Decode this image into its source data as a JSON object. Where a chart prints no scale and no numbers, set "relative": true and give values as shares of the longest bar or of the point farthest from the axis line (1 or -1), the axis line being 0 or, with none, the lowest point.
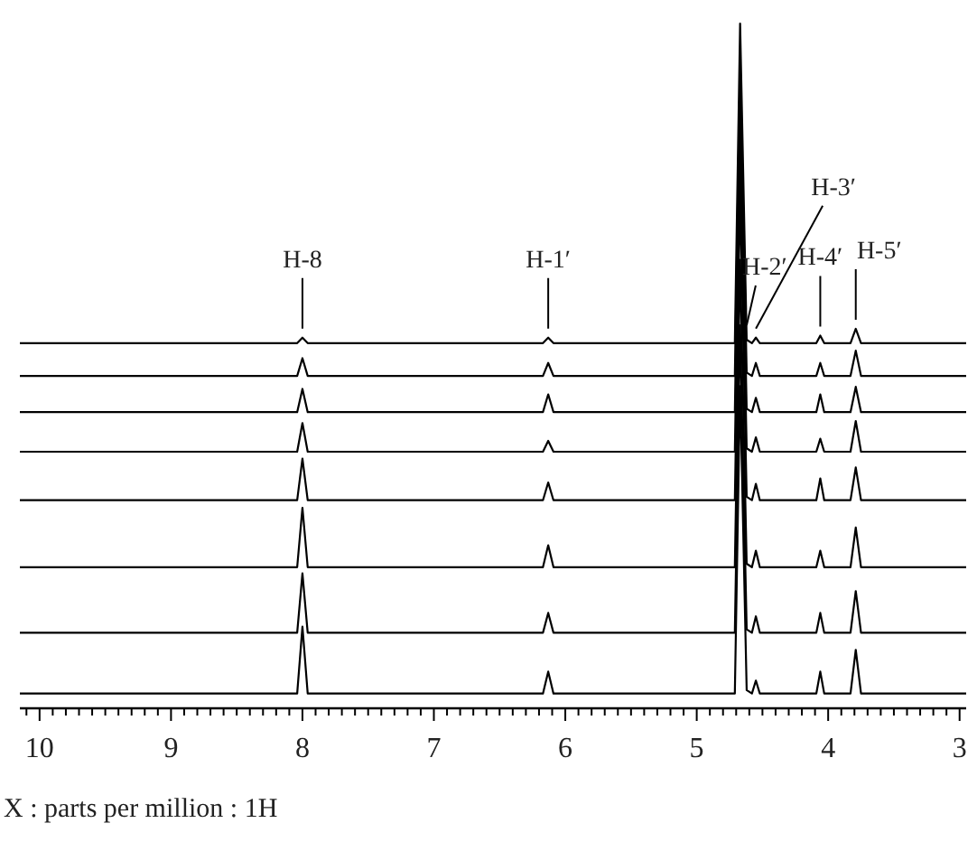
{
  "chart_data": {
    "type": "line",
    "relative": true,
    "xlabel": "X : parts per million : 1H",
    "xlim": [
      10.15,
      2.95
    ],
    "xticks": [
      {
        "value": 10.1,
        "label": null
      },
      10,
      {
        "value": 9.9,
        "label": null
      },
      {
        "value": 9.8,
        "label": null
      },
      {
        "value": 9.7,
        "label": null
      },
      {
        "value": 9.6,
        "label": null
      },
      {
        "value": 9.5,
        "label": null
      },
      {
        "value": 9.4,
        "label": null
      },
      {
        "value": 9.3,
        "label": null
      },
      {
        "value": 9.2,
        "label": null
      },
      {
        "value": 9.1,
        "label": null
      },
      9,
      {
        "value": 8.9,
        "label": null
      },
      {
        "value": 8.8,
        "label": null
      },
      {
        "value": 8.7,
        "label": null
      },
      {
        "value": 8.6,
        "label": null
      },
      {
        "value": 8.5,
        "label": null
      },
      {
        "value": 8.4,
        "label": null
      },
      {
        "value": 8.3,
        "label": null
      },
      {
        "value": 8.2,
        "label": null
      },
      {
        "value": 8.1,
        "label": null
      },
      8,
      {
        "value": 7.9,
        "label": null
      },
      {
        "value": 7.8,
        "label": null
      },
      {
        "value": 7.7,
        "label": null
      },
      {
        "value": 7.6,
        "label": null
      },
      {
        "value": 7.5,
        "label": null
      },
      {
        "value": 7.4,
        "label": null
      },
      {
        "value": 7.3,
        "label": null
      },
      {
        "value": 7.2,
        "label": null
      },
      {
        "value": 7.1,
        "label": null
      },
      7,
      {
        "value": 6.9,
        "label": null
      },
      {
        "value": 6.8,
        "label": null
      },
      {
        "value": 6.7,
        "label": null
      },
      {
        "value": 6.6,
        "label": null
      },
      {
        "value": 6.5,
        "label": null
      },
      {
        "value": 6.4,
        "label": null
      },
      {
        "value": 6.3,
        "label": null
      },
      {
        "value": 6.2,
        "label": null
      },
      {
        "value": 6.1,
        "label": null
      },
      6,
      {
        "value": 5.9,
        "label": null
      },
      {
        "value": 5.8,
        "label": null
      },
      {
        "value": 5.7,
        "label": null
      },
      {
        "value": 5.6,
        "label": null
      },
      {
        "value": 5.5,
        "label": null
      },
      {
        "value": 5.4,
        "label": null
      },
      {
        "value": 5.3,
        "label": null
      },
      {
        "value": 5.2,
        "label": null
      },
      {
        "value": 5.1,
        "label": null
      },
      5,
      {
        "value": 4.9,
        "label": null
      },
      {
        "value": 4.8,
        "label": null
      },
      {
        "value": 4.7,
        "label": null
      },
      {
        "value": 4.6,
        "label": null
      },
      {
        "value": 4.5,
        "label": null
      },
      {
        "value": 4.4,
        "label": null
      },
      {
        "value": 4.3,
        "label": null
      },
      {
        "value": 4.2,
        "label": null
      },
      {
        "value": 4.1,
        "label": null
      },
      4,
      {
        "value": 3.9,
        "label": null
      },
      {
        "value": 3.8,
        "label": null
      },
      {
        "value": 3.7,
        "label": null
      },
      {
        "value": 3.6,
        "label": null
      },
      {
        "value": 3.5,
        "label": null
      },
      {
        "value": 3.4,
        "label": null
      },
      {
        "value": 3.3,
        "label": null
      },
      {
        "value": 3.2,
        "label": null
      },
      {
        "value": 3.1,
        "label": null
      },
      3
    ],
    "x": [
      10.15,
      8.04,
      8.0,
      7.96,
      6.17,
      6.13,
      6.09,
      4.71,
      4.67,
      4.62,
      4.58,
      4.55,
      4.52,
      4.09,
      4.06,
      4.03,
      3.83,
      3.79,
      3.75,
      2.95
    ],
    "series": [
      {
        "color": "#000000",
        "values": [
          0.532,
          0.532,
          0.54,
          0.532,
          0.532,
          0.54,
          0.532,
          0.532,
          1.0,
          0.537,
          0.532,
          0.54,
          0.532,
          0.532,
          0.543,
          0.532,
          0.532,
          0.553,
          0.532,
          0.532
        ]
      },
      {
        "color": "#000000",
        "values": [
          0.484,
          0.484,
          0.51,
          0.484,
          0.484,
          0.503,
          0.484,
          0.484,
          0.934,
          0.489,
          0.484,
          0.503,
          0.484,
          0.484,
          0.503,
          0.484,
          0.484,
          0.521,
          0.484,
          0.484
        ]
      },
      {
        "color": "#000000",
        "values": [
          0.431,
          0.431,
          0.465,
          0.431,
          0.431,
          0.457,
          0.431,
          0.431,
          0.881,
          0.436,
          0.431,
          0.452,
          0.431,
          0.431,
          0.457,
          0.431,
          0.431,
          0.468,
          0.431,
          0.431
        ]
      },
      {
        "color": "#000000",
        "values": [
          0.373,
          0.373,
          0.415,
          0.373,
          0.373,
          0.389,
          0.373,
          0.373,
          0.823,
          0.378,
          0.373,
          0.394,
          0.373,
          0.373,
          0.392,
          0.373,
          0.373,
          0.418,
          0.373,
          0.373
        ]
      },
      {
        "color": "#000000",
        "values": [
          0.302,
          0.302,
          0.363,
          0.302,
          0.302,
          0.328,
          0.302,
          0.302,
          0.752,
          0.307,
          0.302,
          0.326,
          0.302,
          0.302,
          0.334,
          0.302,
          0.302,
          0.35,
          0.302,
          0.302
        ]
      },
      {
        "color": "#000000",
        "values": [
          0.204,
          0.204,
          0.291,
          0.204,
          0.204,
          0.236,
          0.204,
          0.204,
          0.654,
          0.209,
          0.204,
          0.228,
          0.204,
          0.204,
          0.228,
          0.204,
          0.204,
          0.262,
          0.204,
          0.204
        ]
      },
      {
        "color": "#000000",
        "values": [
          0.108,
          0.108,
          0.195,
          0.108,
          0.108,
          0.137,
          0.108,
          0.108,
          0.558,
          0.113,
          0.108,
          0.132,
          0.108,
          0.108,
          0.137,
          0.108,
          0.108,
          0.169,
          0.108,
          0.108
        ]
      },
      {
        "color": "#000000",
        "values": [
          0.019,
          0.019,
          0.117,
          0.019,
          0.019,
          0.051,
          0.019,
          0.019,
          0.469,
          0.024,
          0.019,
          0.038,
          0.019,
          0.019,
          0.051,
          0.019,
          0.019,
          0.083,
          0.019,
          0.019
        ]
      }
    ],
    "annotations": [
      {
        "text": "H-8",
        "x": 8.0,
        "y": 0.54
      },
      {
        "text": "H-1′",
        "x": 6.13,
        "y": 0.54
      },
      {
        "text": "H-2′",
        "x": 4.62,
        "y": 0.545
      },
      {
        "text": "H-3′",
        "x": 4.55,
        "y": 0.54
      },
      {
        "text": "H-4′",
        "x": 4.06,
        "y": 0.543
      },
      {
        "text": "H-5′",
        "x": 3.79,
        "y": 0.553
      }
    ]
  }
}
